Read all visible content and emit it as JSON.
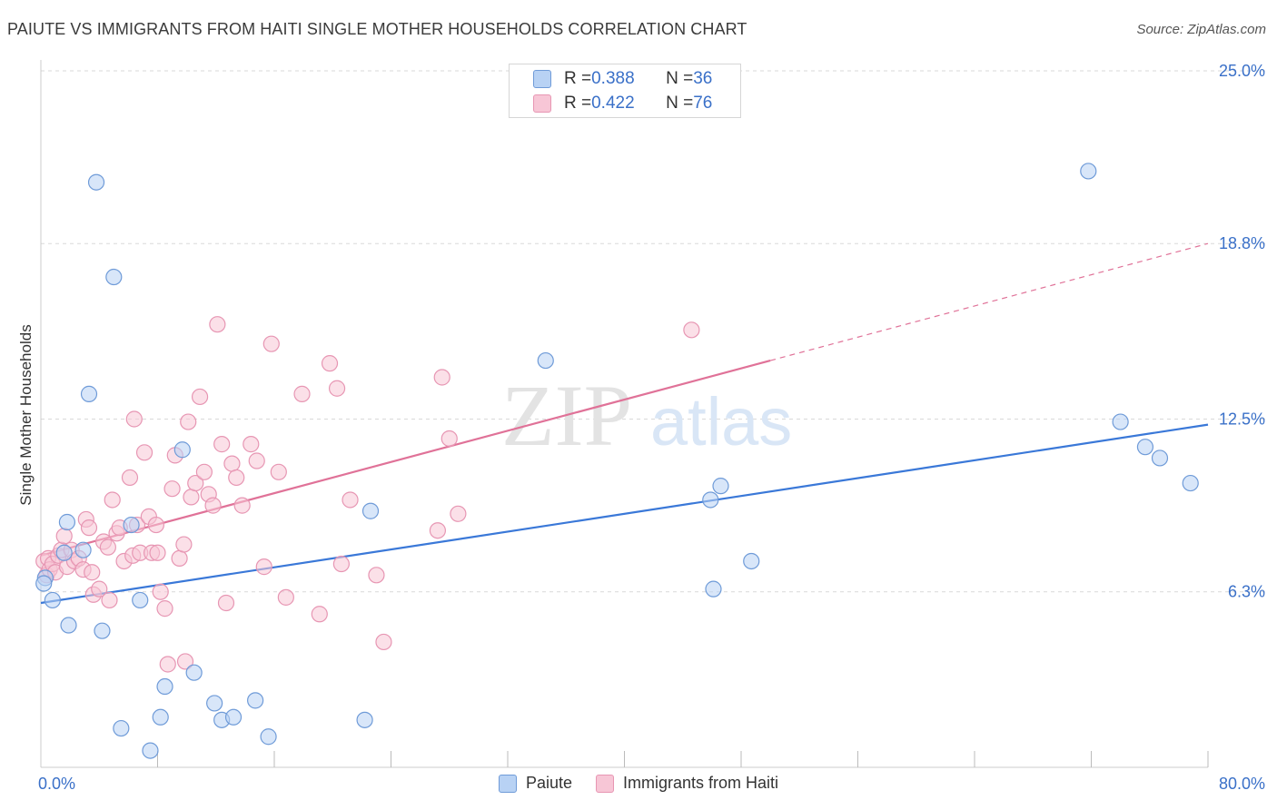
{
  "title": "PAIUTE VS IMMIGRANTS FROM HAITI SINGLE MOTHER HOUSEHOLDS CORRELATION CHART",
  "source": "Source: ZipAtlas.com",
  "watermark": {
    "zip": "ZIP",
    "atlas": "atlas"
  },
  "legend": {
    "rows": [
      {
        "r_label": "R = ",
        "r_value": "0.388",
        "n_label": "N = ",
        "n_value": "36"
      },
      {
        "r_label": "R = ",
        "r_value": "0.422",
        "n_label": "N = ",
        "n_value": "76"
      }
    ]
  },
  "bottom_legend": [
    "Paiute",
    "Immigrants from Haiti"
  ],
  "colors": {
    "blue": "#3a78d8",
    "blue_fill": "#b8d2f4",
    "blue_edge": "#6f9bd8",
    "pink": "#e07298",
    "pink_fill": "#f7c6d6",
    "pink_edge": "#e796b3",
    "axis_label": "#3a70c8",
    "grid": "#d9d9d9"
  },
  "chart_data": {
    "type": "scatter",
    "title": "PAIUTE VS IMMIGRANTS FROM HAITI SINGLE MOTHER HOUSEHOLDS CORRELATION CHART",
    "xlabel": "",
    "ylabel": "Single Mother Households",
    "xlim": [
      0,
      80
    ],
    "ylim": [
      0,
      25
    ],
    "x_tick_labels": [
      "0.0%",
      "80.0%"
    ],
    "y_ticks": [
      6.3,
      12.5,
      18.8,
      25.0
    ],
    "y_tick_labels": [
      "6.3%",
      "12.5%",
      "18.8%",
      "25.0%"
    ],
    "series": [
      {
        "name": "Paiute",
        "R": 0.388,
        "N": 36,
        "trend": {
          "x0": 0,
          "y0": 5.9,
          "x1": 80,
          "y1": 12.3
        },
        "points": [
          [
            0.3,
            6.8
          ],
          [
            0.8,
            6.0
          ],
          [
            1.6,
            7.7
          ],
          [
            1.8,
            8.8
          ],
          [
            2.9,
            7.8
          ],
          [
            3.3,
            13.4
          ],
          [
            3.8,
            21.0
          ],
          [
            4.2,
            4.9
          ],
          [
            5.0,
            17.6
          ],
          [
            5.5,
            1.4
          ],
          [
            6.2,
            8.7
          ],
          [
            6.8,
            6.0
          ],
          [
            7.5,
            0.6
          ],
          [
            8.2,
            1.8
          ],
          [
            8.5,
            2.9
          ],
          [
            9.7,
            11.4
          ],
          [
            10.5,
            3.4
          ],
          [
            11.9,
            2.3
          ],
          [
            12.4,
            1.7
          ],
          [
            13.2,
            1.8
          ],
          [
            14.7,
            2.4
          ],
          [
            15.6,
            1.1
          ],
          [
            22.2,
            1.7
          ],
          [
            22.6,
            9.2
          ],
          [
            34.6,
            14.6
          ],
          [
            46.1,
            6.4
          ],
          [
            45.9,
            9.6
          ],
          [
            46.6,
            10.1
          ],
          [
            48.7,
            7.4
          ],
          [
            71.8,
            21.4
          ],
          [
            74.0,
            12.4
          ],
          [
            75.7,
            11.5
          ],
          [
            76.7,
            11.1
          ],
          [
            78.8,
            10.2
          ],
          [
            0.2,
            6.6
          ],
          [
            1.9,
            5.1
          ]
        ]
      },
      {
        "name": "Immigrants from Haiti",
        "R": 0.422,
        "N": 76,
        "trend": {
          "x0": 0,
          "y0": 7.6,
          "x1": 50,
          "y1": 14.6,
          "x_dash_end": 80,
          "y_dash_end": 18.8
        },
        "points": [
          [
            0.2,
            7.4
          ],
          [
            0.4,
            6.9
          ],
          [
            0.5,
            7.5
          ],
          [
            0.6,
            7.1
          ],
          [
            0.8,
            7.3
          ],
          [
            1.0,
            7.0
          ],
          [
            1.2,
            7.6
          ],
          [
            1.4,
            7.8
          ],
          [
            1.6,
            8.3
          ],
          [
            1.8,
            7.2
          ],
          [
            2.1,
            7.8
          ],
          [
            2.3,
            7.4
          ],
          [
            2.6,
            7.5
          ],
          [
            2.9,
            7.1
          ],
          [
            3.1,
            8.9
          ],
          [
            3.3,
            8.6
          ],
          [
            3.6,
            6.2
          ],
          [
            4.0,
            6.4
          ],
          [
            4.3,
            8.1
          ],
          [
            4.6,
            7.9
          ],
          [
            4.9,
            9.6
          ],
          [
            5.2,
            8.4
          ],
          [
            5.4,
            8.6
          ],
          [
            5.7,
            7.4
          ],
          [
            6.1,
            10.4
          ],
          [
            6.3,
            7.6
          ],
          [
            6.6,
            8.7
          ],
          [
            6.8,
            7.7
          ],
          [
            7.1,
            11.3
          ],
          [
            7.4,
            9.0
          ],
          [
            7.6,
            7.7
          ],
          [
            7.9,
            8.7
          ],
          [
            8.2,
            6.3
          ],
          [
            8.5,
            5.7
          ],
          [
            8.7,
            3.7
          ],
          [
            9.0,
            10.0
          ],
          [
            9.2,
            11.2
          ],
          [
            9.5,
            7.5
          ],
          [
            9.8,
            8.0
          ],
          [
            10.1,
            12.4
          ],
          [
            10.3,
            9.7
          ],
          [
            10.6,
            10.2
          ],
          [
            10.9,
            13.3
          ],
          [
            11.2,
            10.6
          ],
          [
            11.5,
            9.8
          ],
          [
            11.8,
            9.4
          ],
          [
            12.1,
            15.9
          ],
          [
            12.4,
            11.6
          ],
          [
            12.7,
            5.9
          ],
          [
            13.1,
            10.9
          ],
          [
            13.4,
            10.4
          ],
          [
            13.8,
            9.4
          ],
          [
            14.4,
            11.6
          ],
          [
            14.8,
            11.0
          ],
          [
            15.3,
            7.2
          ],
          [
            15.8,
            15.2
          ],
          [
            16.3,
            10.6
          ],
          [
            16.8,
            6.1
          ],
          [
            17.9,
            13.4
          ],
          [
            19.1,
            5.5
          ],
          [
            19.8,
            14.5
          ],
          [
            20.3,
            13.6
          ],
          [
            20.6,
            7.3
          ],
          [
            21.2,
            9.6
          ],
          [
            23.0,
            6.9
          ],
          [
            23.5,
            4.5
          ],
          [
            27.2,
            8.5
          ],
          [
            27.5,
            14.0
          ],
          [
            28.0,
            11.8
          ],
          [
            28.6,
            9.1
          ],
          [
            44.6,
            15.7
          ],
          [
            6.4,
            12.5
          ],
          [
            4.7,
            6.0
          ],
          [
            3.5,
            7.0
          ],
          [
            9.9,
            3.8
          ],
          [
            8.0,
            7.7
          ]
        ]
      }
    ]
  }
}
